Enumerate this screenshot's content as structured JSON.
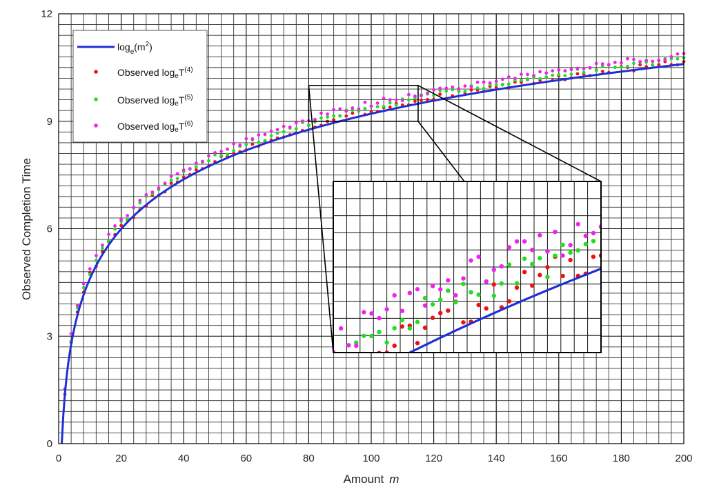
{
  "chart_data": {
    "type": "scatter",
    "xlabel": "Amount",
    "xlabel_var": "m",
    "ylabel": "Observed Completion Time",
    "xlim": [
      0,
      200
    ],
    "ylim": [
      0,
      12
    ],
    "x_ticks": [
      "0",
      "20",
      "40",
      "60",
      "80",
      "100",
      "120",
      "140",
      "160",
      "180",
      "200"
    ],
    "y_ticks": [
      "0",
      "3",
      "6",
      "9",
      "12"
    ],
    "grid": true,
    "legend_position": "top-left",
    "curve": {
      "name_main": "log",
      "name_sub": "e",
      "name_rest": "(m",
      "name_sup": "2",
      "name_close": ")",
      "formula": "2*ln(m)",
      "color": "#1f2fd6"
    },
    "series": [
      {
        "name_main": "Observed log",
        "name_sub": "e",
        "name_rest": "T",
        "name_sup": "(4)",
        "color": "#ee1111",
        "x": [
          2,
          4,
          6,
          8,
          10,
          15,
          20,
          25,
          30,
          40,
          50,
          60,
          70,
          80,
          90,
          100,
          110,
          120,
          130,
          140,
          150,
          160,
          170,
          180,
          190,
          200
        ],
        "y": [
          1.45,
          2.85,
          3.65,
          4.25,
          4.7,
          5.45,
          6.05,
          6.45,
          6.85,
          7.42,
          7.9,
          8.25,
          8.55,
          8.85,
          9.1,
          9.3,
          9.5,
          9.65,
          9.8,
          9.95,
          10.1,
          10.2,
          10.35,
          10.45,
          10.55,
          10.65
        ]
      },
      {
        "name_main": "Observed log",
        "name_sub": "e",
        "name_rest": "T",
        "name_sup": "(5)",
        "color": "#22dd22",
        "x": [
          2,
          4,
          6,
          8,
          10,
          15,
          20,
          25,
          30,
          40,
          50,
          60,
          70,
          80,
          90,
          100,
          110,
          120,
          130,
          140,
          150,
          160,
          170,
          180,
          190,
          200
        ],
        "y": [
          1.5,
          2.9,
          3.75,
          4.35,
          4.8,
          5.55,
          6.15,
          6.6,
          7.0,
          7.55,
          8.0,
          8.35,
          8.65,
          8.95,
          9.2,
          9.4,
          9.55,
          9.75,
          9.9,
          10.05,
          10.2,
          10.3,
          10.45,
          10.55,
          10.65,
          10.75
        ]
      },
      {
        "name_main": "Observed log",
        "name_sub": "e",
        "name_rest": "T",
        "name_sup": "(6)",
        "color": "#ee22ee",
        "x": [
          2,
          4,
          6,
          8,
          10,
          15,
          20,
          25,
          30,
          40,
          50,
          60,
          70,
          80,
          90,
          100,
          110,
          120,
          130,
          140,
          150,
          160,
          170,
          180,
          190,
          200
        ],
        "y": [
          1.55,
          3.0,
          3.85,
          4.45,
          4.9,
          5.65,
          6.25,
          6.7,
          7.1,
          7.65,
          8.1,
          8.45,
          8.75,
          9.05,
          9.3,
          9.5,
          9.65,
          9.85,
          10.0,
          10.15,
          10.3,
          10.4,
          10.55,
          10.65,
          10.75,
          10.85
        ]
      }
    ],
    "inset": {
      "source_xlim": [
        80,
        115
      ],
      "source_ylim": [
        9.0,
        10.0
      ],
      "grid": true
    }
  }
}
